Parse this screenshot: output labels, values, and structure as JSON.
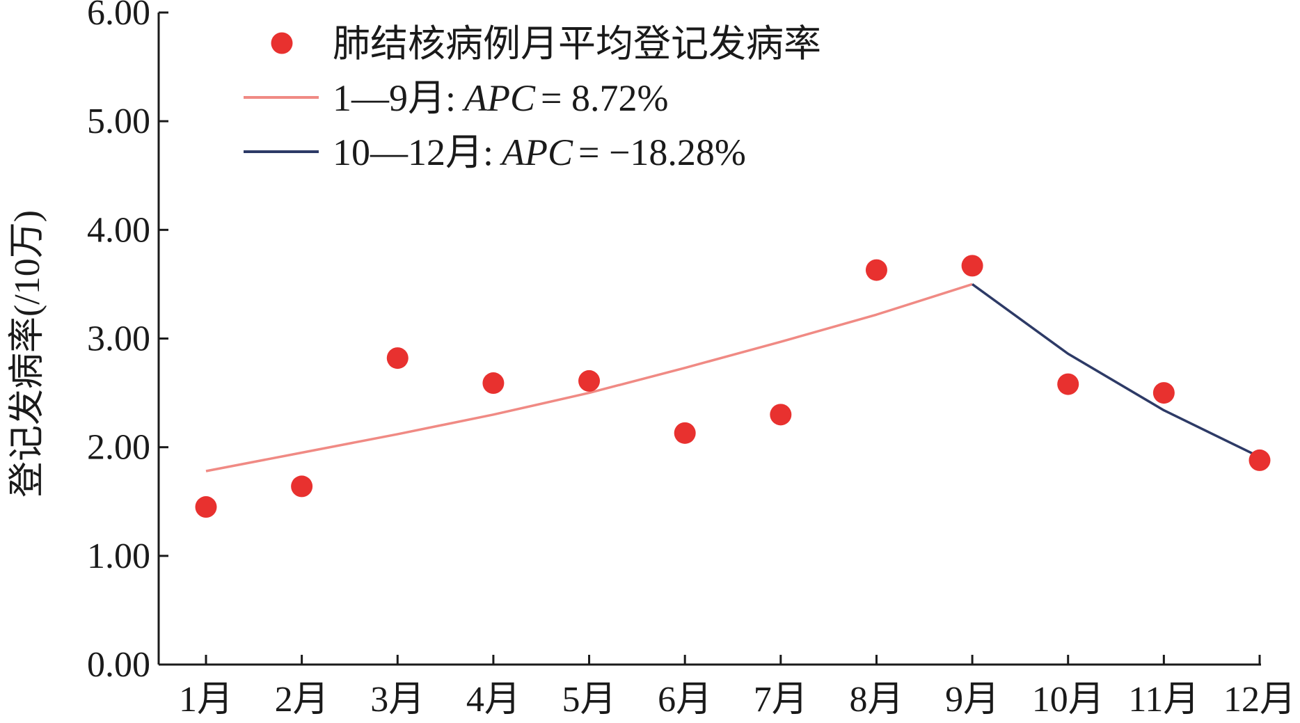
{
  "chart_data": {
    "type": "line",
    "ylabel": "登记发病率(/10万)",
    "xlabel": "",
    "ylim": [
      0,
      6
    ],
    "yticks": [
      "0.00",
      "1.00",
      "2.00",
      "3.00",
      "4.00",
      "5.00",
      "6.00"
    ],
    "categories": [
      "1月",
      "2月",
      "3月",
      "4月",
      "5月",
      "6月",
      "7月",
      "8月",
      "9月",
      "10月",
      "11月",
      "12月"
    ],
    "legend_position": "top-left",
    "series": [
      {
        "name": "肺结核病例月平均登记发病率",
        "kind": "scatter",
        "color": "#e8312f",
        "values": [
          1.45,
          1.64,
          2.82,
          2.59,
          2.61,
          2.13,
          2.3,
          3.63,
          3.67,
          2.58,
          2.5,
          1.88
        ]
      },
      {
        "name": "1—9月:",
        "name_stat": "APC",
        "name_value": "= 8.72%",
        "kind": "line",
        "color": "#f08a84",
        "x": [
          "1月",
          "2月",
          "3月",
          "4月",
          "5月",
          "6月",
          "7月",
          "8月",
          "9月"
        ],
        "values": [
          1.78,
          1.95,
          2.12,
          2.3,
          2.5,
          2.73,
          2.97,
          3.22,
          3.5
        ]
      },
      {
        "name": "10—12月:",
        "name_stat": "APC",
        "name_value": "= −18.28%",
        "kind": "line",
        "color": "#2d3a66",
        "x": [
          "9月",
          "10月",
          "11月",
          "12月"
        ],
        "values": [
          3.5,
          2.86,
          2.34,
          1.91
        ]
      }
    ]
  }
}
